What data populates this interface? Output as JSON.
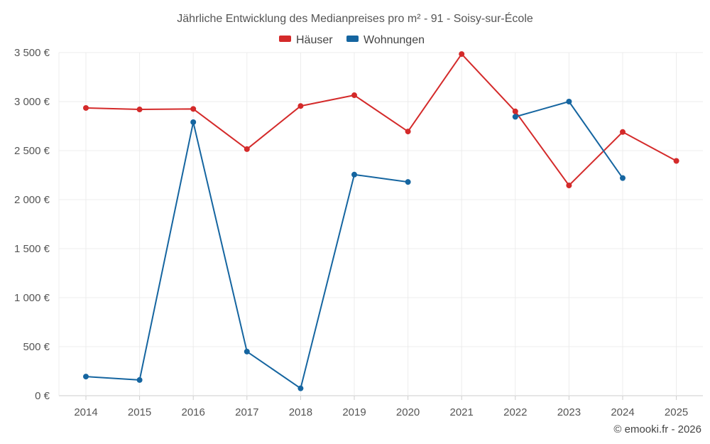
{
  "chart_data": {
    "type": "line",
    "title": "Jährliche Entwicklung des Medianpreises pro m² - 91 - Soisy-sur-École",
    "categories": [
      "2014",
      "2015",
      "2016",
      "2017",
      "2018",
      "2019",
      "2020",
      "2021",
      "2022",
      "2023",
      "2024",
      "2025"
    ],
    "ylim": [
      0,
      3500
    ],
    "yticks": [
      0,
      500,
      1000,
      1500,
      2000,
      2500,
      3000,
      3500
    ],
    "ytick_labels": [
      "0 €",
      "500 €",
      "1 000 €",
      "1 500 €",
      "2 000 €",
      "2 500 €",
      "3 000 €",
      "3 500 €"
    ],
    "grid": true,
    "legend_position": "top-center",
    "series": [
      {
        "name": "Häuser",
        "color": "#d42a2a",
        "values": [
          2935,
          2920,
          2925,
          2515,
          2955,
          3065,
          2695,
          3485,
          2900,
          2145,
          2690,
          2395
        ]
      },
      {
        "name": "Wohnungen",
        "color": "#1565a0",
        "values": [
          195,
          160,
          2790,
          450,
          75,
          2255,
          2180,
          null,
          2845,
          3000,
          2220,
          null
        ]
      }
    ],
    "credit": "© emooki.fr - 2026"
  }
}
